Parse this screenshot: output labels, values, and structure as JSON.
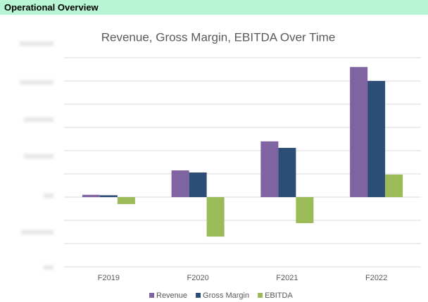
{
  "header": {
    "title": "Operational Overview"
  },
  "chart_data": {
    "type": "bar",
    "title": "Revenue, Gross Margin, EBITDA Over Time",
    "categories": [
      "F2019",
      "F2020",
      "F2021",
      "F2022"
    ],
    "series": [
      {
        "name": "Revenue",
        "color": "#8064a2",
        "values": [
          0.1,
          1.15,
          2.4,
          5.6
        ]
      },
      {
        "name": "Gross Margin",
        "color": "#2c4d75",
        "values": [
          0.08,
          1.06,
          2.12,
          5.0
        ]
      },
      {
        "name": "EBITDA",
        "color": "#9bbb59",
        "values": [
          -0.3,
          -1.7,
          -1.12,
          0.97
        ]
      }
    ],
    "ylim": [
      -3,
      6
    ],
    "yticks": [
      -3,
      -2,
      -1,
      0,
      1,
      2,
      3,
      4,
      5,
      6
    ],
    "grid": true,
    "legend": "bottom"
  }
}
